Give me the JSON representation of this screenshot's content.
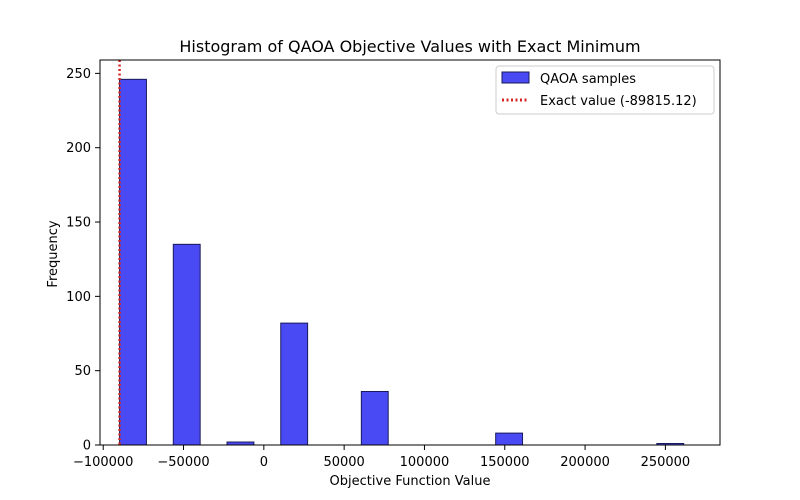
{
  "chart_data": {
    "type": "bar",
    "title": "Histogram of QAOA Objective Values with Exact Minimum",
    "xlabel": "Objective Function Value",
    "ylabel": "Frequency",
    "xlim": [
      -102000,
      284000
    ],
    "ylim": [
      0,
      259
    ],
    "xticks": [
      {
        "value": -100000,
        "label": "−100000"
      },
      {
        "value": -50000,
        "label": "−50000"
      },
      {
        "value": 0,
        "label": "0"
      },
      {
        "value": 50000,
        "label": "50000"
      },
      {
        "value": 100000,
        "label": "100000"
      },
      {
        "value": 150000,
        "label": "150000"
      },
      {
        "value": 200000,
        "label": "200000"
      },
      {
        "value": 250000,
        "label": "250000"
      }
    ],
    "yticks": [
      {
        "value": 0,
        "label": "0"
      },
      {
        "value": 50,
        "label": "50"
      },
      {
        "value": 100,
        "label": "100"
      },
      {
        "value": 150,
        "label": "150"
      },
      {
        "value": 200,
        "label": "200"
      },
      {
        "value": 250,
        "label": "250"
      }
    ],
    "bins": [
      {
        "x0": -89815,
        "x1": -73090,
        "count": 246
      },
      {
        "x0": -56365,
        "x1": -39640,
        "count": 135
      },
      {
        "x0": -22915,
        "x1": -6190,
        "count": 2
      },
      {
        "x0": 10535,
        "x1": 27260,
        "count": 82
      },
      {
        "x0": 60710,
        "x1": 77435,
        "count": 36
      },
      {
        "x0": 144335,
        "x1": 161060,
        "count": 8
      },
      {
        "x0": 244685,
        "x1": 261410,
        "count": 1
      }
    ],
    "exact_value": -89815.12,
    "legend": {
      "position": "top-right",
      "entries": [
        {
          "label": "QAOA samples",
          "kind": "bar"
        },
        {
          "label": "Exact value (-89815.12)",
          "kind": "dotted-line"
        }
      ]
    },
    "colors": {
      "bar_fill": "#4a4af5",
      "bar_edge": "#1a1a5a",
      "exact_line": "#d62728"
    }
  }
}
